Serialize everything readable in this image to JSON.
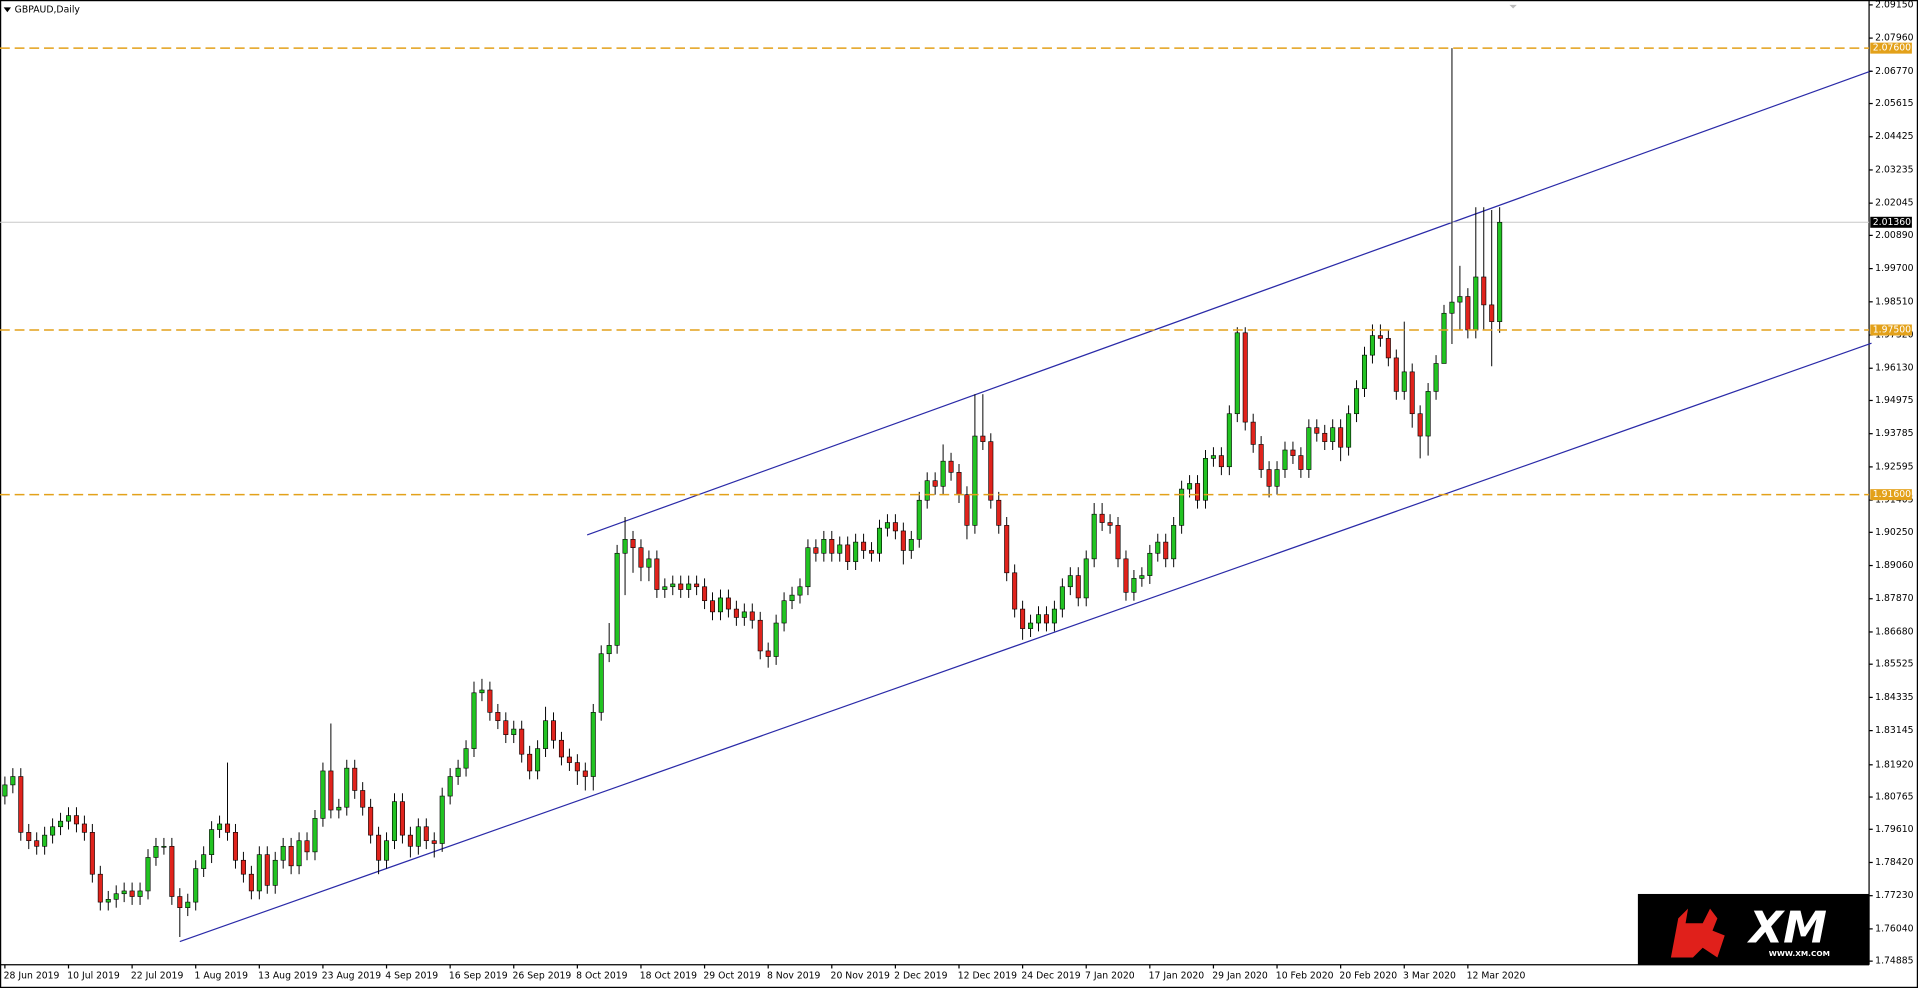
{
  "chart_data": {
    "type": "candlestick",
    "title": "GBPAUD,Daily",
    "categories": [
      "28 Jun 2019",
      null,
      null,
      null,
      null,
      null,
      null,
      null,
      "10 Jul 2019",
      null,
      null,
      null,
      null,
      null,
      null,
      null,
      "22 Jul 2019",
      null,
      null,
      null,
      null,
      null,
      null,
      null,
      "1 Aug 2019",
      null,
      null,
      null,
      null,
      null,
      null,
      null,
      "13 Aug 2019",
      null,
      null,
      null,
      null,
      null,
      null,
      null,
      "23 Aug 2019",
      null,
      null,
      null,
      null,
      null,
      null,
      null,
      "4 Sep 2019",
      null,
      null,
      null,
      null,
      null,
      null,
      null,
      "16 Sep 2019",
      null,
      null,
      null,
      null,
      null,
      null,
      null,
      "26 Sep 2019",
      null,
      null,
      null,
      null,
      null,
      null,
      null,
      "8 Oct 2019",
      null,
      null,
      null,
      null,
      null,
      null,
      null,
      "18 Oct 2019",
      null,
      null,
      null,
      null,
      null,
      null,
      null,
      "29 Oct 2019",
      null,
      null,
      null,
      null,
      null,
      null,
      null,
      "8 Nov 2019",
      null,
      null,
      null,
      null,
      null,
      null,
      null,
      "20 Nov 2019",
      null,
      null,
      null,
      null,
      null,
      null,
      null,
      "2 Dec 2019",
      null,
      null,
      null,
      null,
      null,
      null,
      null,
      "12 Dec 2019",
      null,
      null,
      null,
      null,
      null,
      null,
      null,
      "24 Dec 2019",
      null,
      null,
      null,
      null,
      null,
      null,
      null,
      "7 Jan 2020",
      null,
      null,
      null,
      null,
      null,
      null,
      null,
      "17 Jan 2020",
      null,
      null,
      null,
      null,
      null,
      null,
      null,
      "29 Jan 2020",
      null,
      null,
      null,
      null,
      null,
      null,
      null,
      "10 Feb 2020",
      null,
      null,
      null,
      null,
      null,
      null,
      null,
      "20 Feb 2020",
      null,
      null,
      null,
      null,
      null,
      null,
      null,
      "3 Mar 2020",
      null,
      null,
      null,
      null,
      null,
      null,
      null,
      "12 Mar 2020",
      null,
      null,
      null,
      null
    ],
    "open": [
      1.808,
      1.812,
      1.815,
      1.795,
      1.792,
      1.79,
      1.794,
      1.797,
      1.799,
      1.801,
      1.798,
      1.795,
      1.78,
      1.77,
      1.771,
      1.773,
      1.774,
      1.772,
      1.774,
      1.786,
      1.79,
      1.79,
      1.772,
      1.768,
      1.77,
      1.782,
      1.787,
      1.796,
      1.798,
      1.795,
      1.785,
      1.78,
      1.774,
      1.787,
      1.776,
      1.785,
      1.79,
      1.783,
      1.792,
      1.788,
      1.8,
      1.817,
      1.803,
      1.804,
      1.818,
      1.81,
      1.804,
      1.794,
      1.785,
      1.792,
      1.806,
      1.794,
      1.79,
      1.797,
      1.792,
      1.791,
      1.808,
      1.815,
      1.818,
      1.825,
      1.845,
      1.846,
      1.838,
      1.835,
      1.83,
      1.832,
      1.823,
      1.817,
      1.825,
      1.835,
      1.828,
      1.822,
      1.82,
      1.817,
      1.815,
      1.838,
      1.859,
      1.862,
      1.895,
      1.9,
      1.897,
      1.89,
      1.893,
      1.882,
      1.883,
      1.884,
      1.882,
      1.884,
      1.883,
      1.878,
      1.874,
      1.879,
      1.875,
      1.872,
      1.874,
      1.871,
      1.86,
      1.858,
      1.87,
      1.878,
      1.88,
      1.883,
      1.897,
      1.895,
      1.9,
      1.895,
      1.898,
      1.892,
      1.899,
      1.896,
      1.895,
      1.904,
      1.906,
      1.903,
      1.896,
      1.9,
      1.914,
      1.921,
      1.919,
      1.928,
      1.924,
      1.916,
      1.905,
      1.937,
      1.935,
      1.914,
      1.905,
      1.888,
      1.875,
      1.868,
      1.87,
      1.873,
      1.87,
      1.875,
      1.883,
      1.887,
      1.879,
      1.893,
      1.909,
      1.906,
      1.905,
      1.893,
      1.881,
      1.886,
      1.887,
      1.895,
      1.899,
      1.893,
      1.905,
      1.918,
      1.92,
      1.914,
      1.929,
      1.93,
      1.926,
      1.945,
      1.974,
      1.942,
      1.934,
      1.925,
      1.919,
      1.925,
      1.932,
      1.93,
      1.925,
      1.94,
      1.938,
      1.935,
      1.94,
      1.933,
      1.945,
      1.954,
      1.966,
      1.973,
      1.972,
      1.965,
      1.953,
      1.96,
      1.945,
      1.937,
      1.953,
      1.963,
      1.981,
      1.985,
      1.987,
      1.975,
      1.994,
      1.984,
      1.978
    ],
    "high": [
      1.815,
      1.818,
      1.818,
      1.798,
      1.795,
      1.797,
      1.8,
      1.802,
      1.804,
      1.804,
      1.801,
      1.798,
      1.783,
      1.774,
      1.776,
      1.777,
      1.777,
      1.777,
      1.789,
      1.793,
      1.793,
      1.793,
      1.775,
      1.773,
      1.785,
      1.79,
      1.799,
      1.801,
      1.82,
      1.798,
      1.788,
      1.783,
      1.79,
      1.79,
      1.788,
      1.793,
      1.793,
      1.795,
      1.795,
      1.803,
      1.82,
      1.834,
      1.807,
      1.821,
      1.821,
      1.813,
      1.807,
      1.797,
      1.795,
      1.809,
      1.809,
      1.797,
      1.8,
      1.8,
      1.795,
      1.811,
      1.818,
      1.821,
      1.828,
      1.849,
      1.85,
      1.849,
      1.841,
      1.838,
      1.835,
      1.835,
      1.826,
      1.828,
      1.84,
      1.838,
      1.831,
      1.825,
      1.823,
      1.82,
      1.841,
      1.862,
      1.87,
      1.898,
      1.908,
      1.903,
      1.9,
      1.896,
      1.896,
      1.886,
      1.887,
      1.887,
      1.887,
      1.887,
      1.886,
      1.881,
      1.882,
      1.882,
      1.878,
      1.877,
      1.877,
      1.874,
      1.863,
      1.873,
      1.881,
      1.883,
      1.886,
      1.9,
      1.9,
      1.903,
      1.903,
      1.901,
      1.901,
      1.902,
      1.902,
      1.899,
      1.907,
      1.909,
      1.909,
      1.906,
      1.903,
      1.917,
      1.924,
      1.924,
      1.934,
      1.931,
      1.927,
      1.919,
      1.952,
      1.952,
      1.938,
      1.917,
      1.908,
      1.891,
      1.878,
      1.873,
      1.876,
      1.876,
      1.878,
      1.886,
      1.89,
      1.89,
      1.896,
      1.913,
      1.913,
      1.909,
      1.908,
      1.896,
      1.889,
      1.89,
      1.898,
      1.902,
      1.902,
      1.908,
      1.921,
      1.923,
      1.923,
      1.932,
      1.933,
      1.933,
      1.948,
      1.976,
      1.976,
      1.945,
      1.937,
      1.928,
      1.928,
      1.935,
      1.935,
      1.933,
      1.943,
      1.943,
      1.941,
      1.943,
      1.943,
      1.948,
      1.957,
      1.969,
      1.977,
      1.977,
      1.975,
      1.968,
      1.978,
      1.963,
      1.948,
      1.956,
      1.966,
      1.984,
      2.076,
      1.998,
      1.99,
      2.019,
      2.019,
      2.018,
      2.019
    ],
    "low": [
      1.805,
      1.809,
      1.792,
      1.789,
      1.787,
      1.787,
      1.791,
      1.794,
      1.796,
      1.795,
      1.792,
      1.777,
      1.767,
      1.767,
      1.768,
      1.77,
      1.769,
      1.769,
      1.771,
      1.783,
      1.787,
      1.769,
      1.7575,
      1.765,
      1.767,
      1.779,
      1.784,
      1.793,
      1.792,
      1.782,
      1.777,
      1.771,
      1.771,
      1.773,
      1.773,
      1.782,
      1.78,
      1.78,
      1.785,
      1.785,
      1.797,
      1.8,
      1.8,
      1.801,
      1.807,
      1.801,
      1.791,
      1.78,
      1.782,
      1.789,
      1.791,
      1.786,
      1.787,
      1.789,
      1.786,
      1.788,
      1.805,
      1.812,
      1.815,
      1.822,
      1.842,
      1.835,
      1.832,
      1.827,
      1.827,
      1.82,
      1.814,
      1.814,
      1.822,
      1.825,
      1.819,
      1.817,
      1.812,
      1.81,
      1.81,
      1.835,
      1.856,
      1.859,
      1.88,
      1.888,
      1.885,
      1.885,
      1.879,
      1.879,
      1.88,
      1.879,
      1.879,
      1.88,
      1.875,
      1.871,
      1.871,
      1.872,
      1.869,
      1.869,
      1.868,
      1.857,
      1.854,
      1.855,
      1.867,
      1.875,
      1.877,
      1.88,
      1.892,
      1.892,
      1.892,
      1.892,
      1.889,
      1.889,
      1.893,
      1.892,
      1.892,
      1.901,
      1.9,
      1.891,
      1.893,
      1.897,
      1.911,
      1.916,
      1.916,
      1.921,
      1.913,
      1.9,
      1.902,
      1.932,
      1.911,
      1.902,
      1.885,
      1.872,
      1.864,
      1.865,
      1.867,
      1.867,
      1.867,
      1.872,
      1.88,
      1.876,
      1.876,
      1.89,
      1.903,
      1.902,
      1.89,
      1.878,
      1.878,
      1.883,
      1.884,
      1.892,
      1.89,
      1.89,
      1.902,
      1.915,
      1.911,
      1.911,
      1.926,
      1.923,
      1.923,
      1.942,
      1.939,
      1.931,
      1.922,
      1.915,
      1.916,
      1.922,
      1.927,
      1.922,
      1.922,
      1.935,
      1.932,
      1.932,
      1.928,
      1.93,
      1.942,
      1.951,
      1.963,
      1.969,
      1.962,
      1.95,
      1.95,
      1.94,
      1.929,
      1.93,
      1.95,
      1.963,
      1.97,
      1.975,
      1.972,
      1.972,
      1.975,
      1.962,
      1.974
    ],
    "close": [
      1.812,
      1.815,
      1.795,
      1.792,
      1.79,
      1.794,
      1.797,
      1.799,
      1.801,
      1.798,
      1.795,
      1.78,
      1.77,
      1.771,
      1.773,
      1.774,
      1.772,
      1.774,
      1.786,
      1.79,
      1.79,
      1.772,
      1.768,
      1.77,
      1.782,
      1.787,
      1.796,
      1.798,
      1.795,
      1.785,
      1.78,
      1.774,
      1.787,
      1.776,
      1.785,
      1.79,
      1.783,
      1.792,
      1.788,
      1.8,
      1.817,
      1.803,
      1.804,
      1.818,
      1.81,
      1.804,
      1.794,
      1.785,
      1.792,
      1.806,
      1.794,
      1.79,
      1.797,
      1.792,
      1.791,
      1.808,
      1.815,
      1.818,
      1.825,
      1.845,
      1.846,
      1.838,
      1.835,
      1.83,
      1.832,
      1.823,
      1.817,
      1.825,
      1.835,
      1.828,
      1.822,
      1.82,
      1.817,
      1.815,
      1.838,
      1.859,
      1.862,
      1.895,
      1.9,
      1.897,
      1.89,
      1.893,
      1.882,
      1.883,
      1.884,
      1.882,
      1.884,
      1.883,
      1.878,
      1.874,
      1.879,
      1.875,
      1.872,
      1.874,
      1.871,
      1.86,
      1.858,
      1.87,
      1.878,
      1.88,
      1.883,
      1.897,
      1.895,
      1.9,
      1.895,
      1.898,
      1.892,
      1.899,
      1.896,
      1.895,
      1.904,
      1.906,
      1.903,
      1.896,
      1.9,
      1.914,
      1.921,
      1.919,
      1.928,
      1.924,
      1.916,
      1.905,
      1.937,
      1.935,
      1.914,
      1.905,
      1.888,
      1.875,
      1.868,
      1.87,
      1.873,
      1.87,
      1.875,
      1.883,
      1.887,
      1.879,
      1.893,
      1.909,
      1.906,
      1.905,
      1.893,
      1.881,
      1.886,
      1.887,
      1.895,
      1.899,
      1.893,
      1.905,
      1.918,
      1.92,
      1.914,
      1.929,
      1.93,
      1.926,
      1.945,
      1.974,
      1.942,
      1.934,
      1.925,
      1.919,
      1.925,
      1.932,
      1.93,
      1.925,
      1.94,
      1.938,
      1.935,
      1.94,
      1.933,
      1.945,
      1.954,
      1.966,
      1.973,
      1.972,
      1.965,
      1.953,
      1.96,
      1.945,
      1.937,
      1.953,
      1.963,
      1.981,
      1.985,
      1.987,
      1.975,
      1.994,
      1.984,
      1.978,
      2.0136
    ],
    "up_color": "#22c322",
    "down_color": "#e0231c",
    "ylim": [
      1.74885,
      2.0915
    ],
    "yticks": [
      {
        "value": 2.0915,
        "label": "2.09150"
      },
      {
        "value": 2.0796,
        "label": "2.07960"
      },
      {
        "value": 2.0677,
        "label": "2.06770"
      },
      {
        "value": 2.05615,
        "label": "2.05615"
      },
      {
        "value": 2.04425,
        "label": "2.04425"
      },
      {
        "value": 2.03235,
        "label": "2.03235"
      },
      {
        "value": 2.02045,
        "label": "2.02045"
      },
      {
        "value": 2.0089,
        "label": "2.00890"
      },
      {
        "value": 1.997,
        "label": "1.99700"
      },
      {
        "value": 1.9851,
        "label": "1.98510"
      },
      {
        "value": 1.9732,
        "label": "1.97320"
      },
      {
        "value": 1.9613,
        "label": "1.96130"
      },
      {
        "value": 1.94975,
        "label": "1.94975"
      },
      {
        "value": 1.93785,
        "label": "1.93785"
      },
      {
        "value": 1.92595,
        "label": "1.92595"
      },
      {
        "value": 1.91405,
        "label": "1.91405"
      },
      {
        "value": 1.9025,
        "label": "1.90250"
      },
      {
        "value": 1.8906,
        "label": "1.89060"
      },
      {
        "value": 1.8787,
        "label": "1.87870"
      },
      {
        "value": 1.8668,
        "label": "1.86680"
      },
      {
        "value": 1.85525,
        "label": "1.85525"
      },
      {
        "value": 1.84335,
        "label": "1.84335"
      },
      {
        "value": 1.83145,
        "label": "1.83145"
      },
      {
        "value": 1.8192,
        "label": "1.81920"
      },
      {
        "value": 1.80765,
        "label": "1.80765"
      },
      {
        "value": 1.7961,
        "label": "1.79610"
      },
      {
        "value": 1.7842,
        "label": "1.78420"
      },
      {
        "value": 1.7723,
        "label": "1.77230"
      },
      {
        "value": 1.7604,
        "label": "1.76040"
      },
      {
        "value": 1.74885,
        "label": "1.74885"
      }
    ],
    "levels": [
      {
        "value": 2.076,
        "label": "2.07600"
      },
      {
        "value": 1.975,
        "label": "1.97500"
      },
      {
        "value": 1.916,
        "label": "1.91600"
      }
    ],
    "level_color": "#e3a11a",
    "current_price": {
      "value": 2.0136,
      "label": "2.01360"
    }
  },
  "logo": {
    "text": "XM",
    "url": "WWW.XM.COM"
  }
}
